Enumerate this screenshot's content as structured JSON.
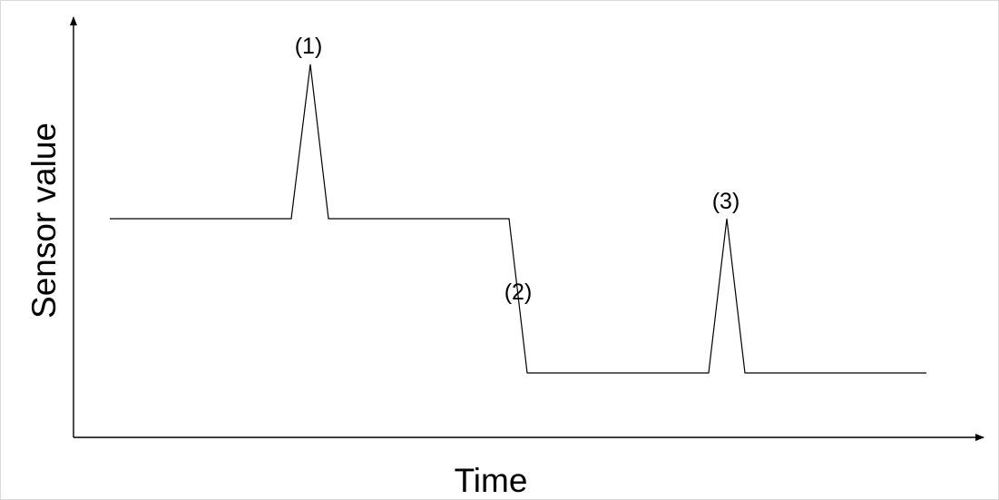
{
  "diagram": {
    "xlabel": "Time",
    "ylabel": "Sensor value",
    "annotations": [
      {
        "id": "1",
        "text": "(1)"
      },
      {
        "id": "2",
        "text": "(2)"
      },
      {
        "id": "3",
        "text": "(3)"
      }
    ],
    "colors": {
      "line": "#000000",
      "axes": "#000000",
      "frame": "#d9d9d9"
    }
  }
}
